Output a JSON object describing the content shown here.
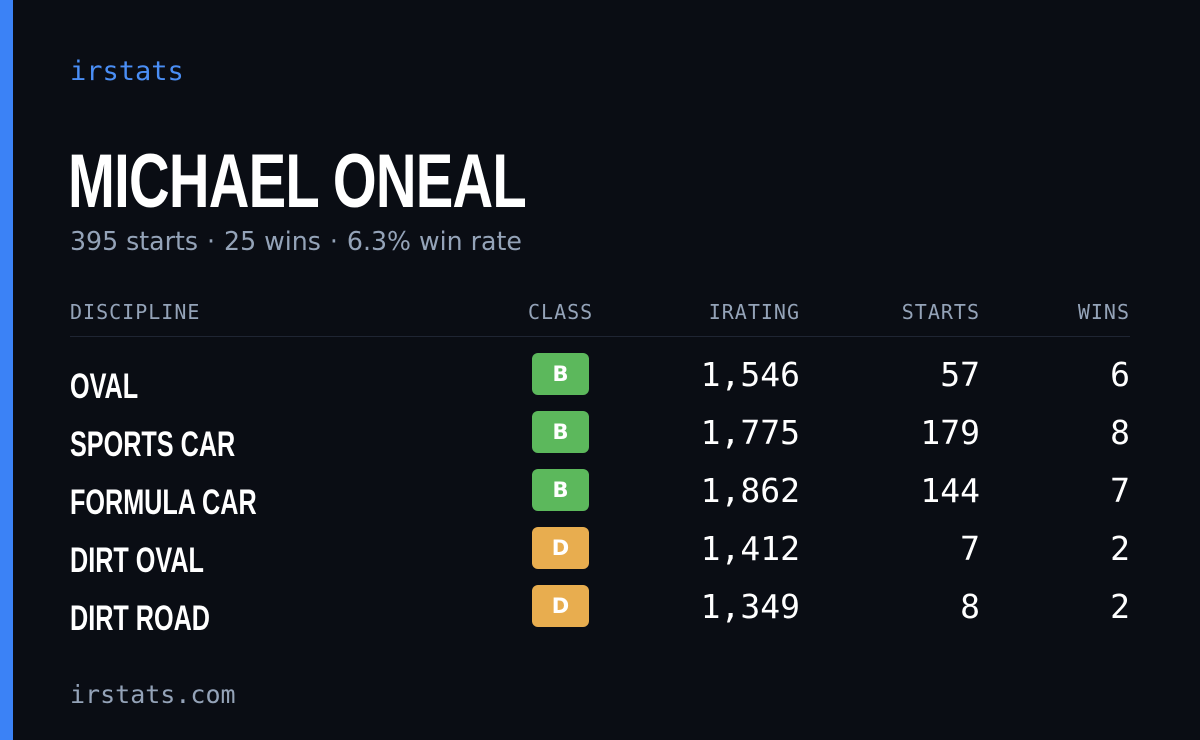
{
  "brand": "irstats",
  "driver": {
    "name": "MICHAEL ONEAL",
    "summary": {
      "starts": "395 starts",
      "wins": "25 wins",
      "win_rate": "6.3% win rate",
      "separator": "·"
    }
  },
  "table": {
    "headers": {
      "discipline": "DISCIPLINE",
      "class": "CLASS",
      "irating": "IRATING",
      "starts": "STARTS",
      "wins": "WINS"
    },
    "rows": [
      {
        "discipline": "OVAL",
        "class": "B",
        "irating": "1,546",
        "starts": "57",
        "wins": "6"
      },
      {
        "discipline": "SPORTS CAR",
        "class": "B",
        "irating": "1,775",
        "starts": "179",
        "wins": "8"
      },
      {
        "discipline": "FORMULA CAR",
        "class": "B",
        "irating": "1,862",
        "starts": "144",
        "wins": "7"
      },
      {
        "discipline": "DIRT OVAL",
        "class": "D",
        "irating": "1,412",
        "starts": "7",
        "wins": "2"
      },
      {
        "discipline": "DIRT ROAD",
        "class": "D",
        "irating": "1,349",
        "starts": "8",
        "wins": "2"
      }
    ]
  },
  "class_colors": {
    "B": "#5cb85c",
    "D": "#e8ad4f"
  },
  "colors": {
    "accent": "#3b82f6",
    "background": "#0a0d14",
    "muted": "#94a3b8"
  },
  "footer": "irstats.com"
}
